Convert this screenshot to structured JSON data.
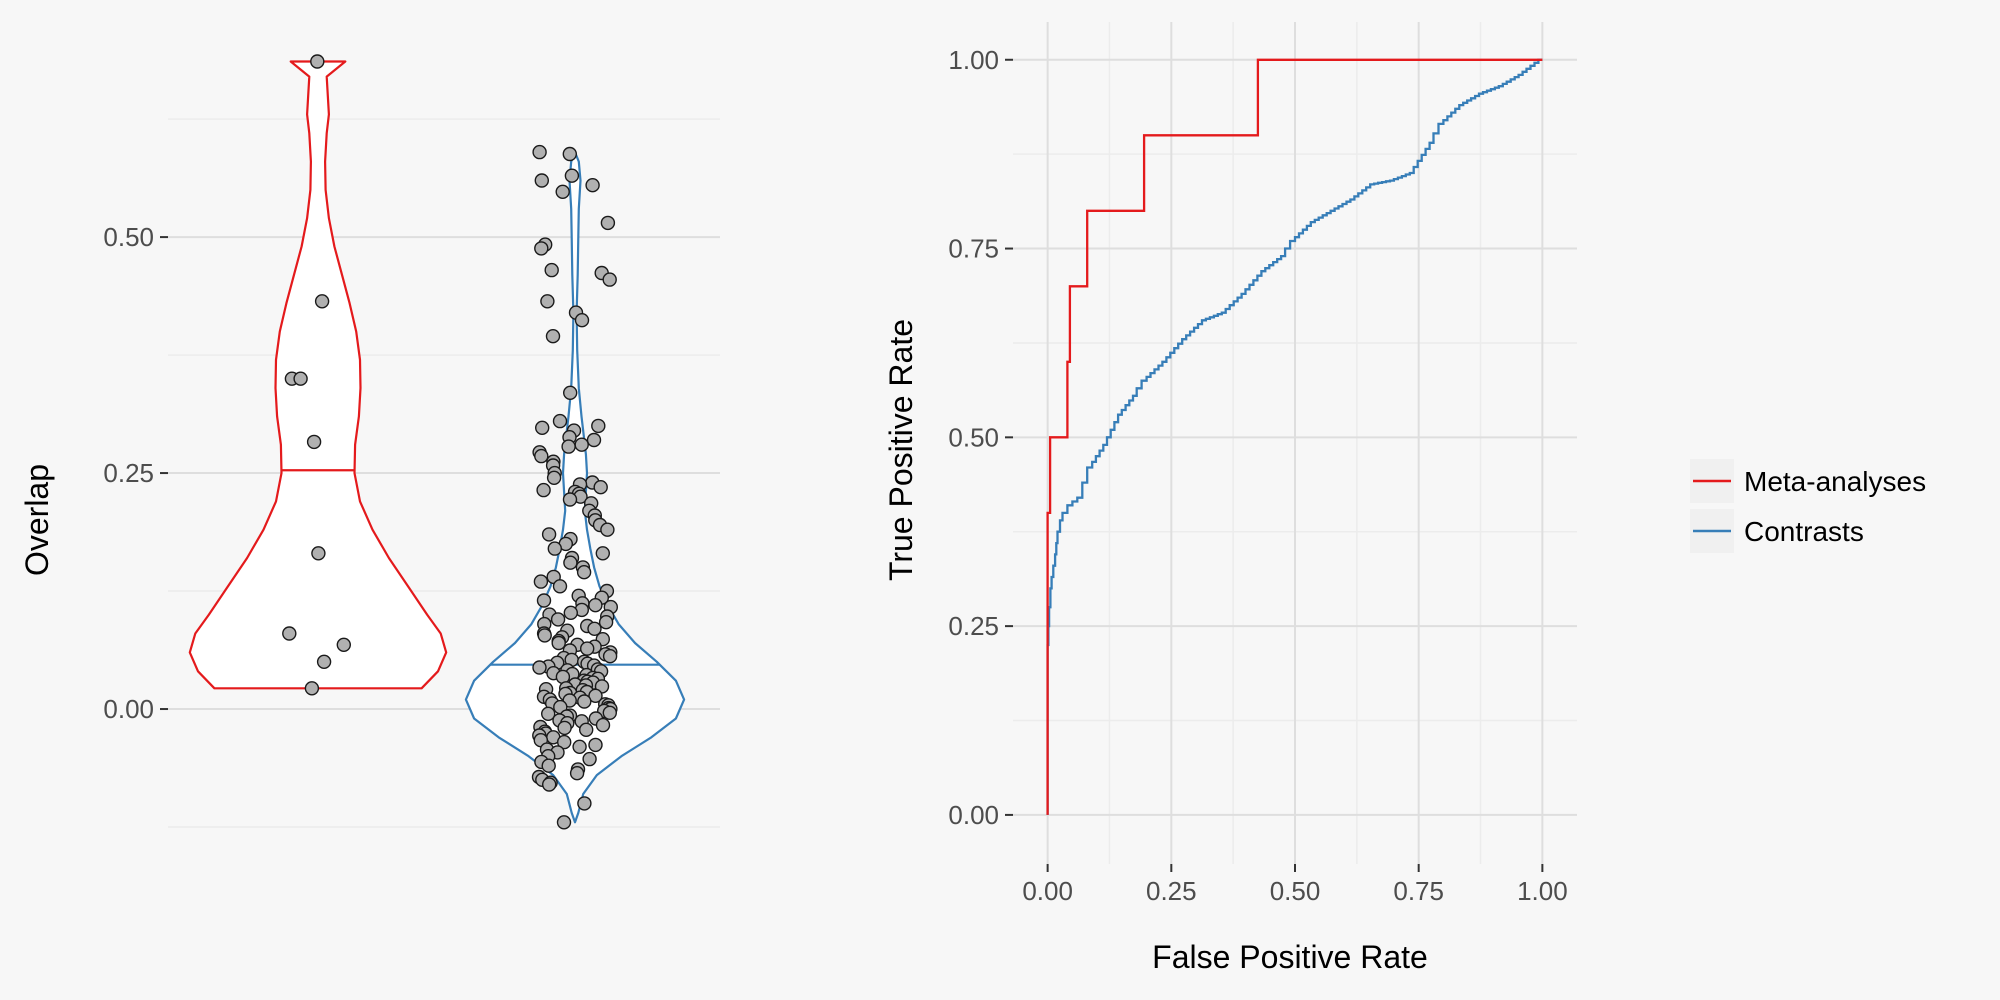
{
  "colors": {
    "background": "#f7f7f7",
    "grid_major": "#dedede",
    "grid_minor": "#ececec",
    "meta": "#e41a1c",
    "contrasts": "#377eb8",
    "point_fill": "#b0b0b0",
    "point_stroke": "#1a1a1a"
  },
  "chart_data": [
    {
      "type": "violin",
      "xlabel": "",
      "ylabel": "Overlap",
      "ylim": [
        -0.25,
        0.73
      ],
      "yticks": [
        0.0,
        0.25,
        0.5
      ],
      "ytick_labels": [
        "0.00",
        "0.25",
        "0.50"
      ],
      "grid": true,
      "groups": [
        {
          "name": "Meta-analyses",
          "color": "#e41a1c",
          "median": 0.253,
          "range": [
            0.022,
            0.686
          ],
          "density_profile": [
            [
              0.022,
              0.19
            ],
            [
              0.04,
              0.22
            ],
            [
              0.06,
              0.235
            ],
            [
              0.08,
              0.225
            ],
            [
              0.1,
              0.2
            ],
            [
              0.13,
              0.165
            ],
            [
              0.16,
              0.13
            ],
            [
              0.19,
              0.1
            ],
            [
              0.22,
              0.077
            ],
            [
              0.25,
              0.067
            ],
            [
              0.28,
              0.068
            ],
            [
              0.31,
              0.075
            ],
            [
              0.34,
              0.078
            ],
            [
              0.37,
              0.077
            ],
            [
              0.4,
              0.07
            ],
            [
              0.43,
              0.058
            ],
            [
              0.46,
              0.044
            ],
            [
              0.49,
              0.03
            ],
            [
              0.52,
              0.02
            ],
            [
              0.55,
              0.014
            ],
            [
              0.58,
              0.013
            ],
            [
              0.61,
              0.016
            ],
            [
              0.63,
              0.02
            ],
            [
              0.65,
              0.018
            ],
            [
              0.67,
              0.016
            ],
            [
              0.686,
              0.05
            ]
          ],
          "points": [
            0.686,
            0.432,
            0.35,
            0.35,
            0.283,
            0.165,
            0.08,
            0.068,
            0.05,
            0.022
          ]
        },
        {
          "name": "Contrasts",
          "color": "#377eb8",
          "median": 0.047,
          "range": [
            -0.12,
            0.59
          ],
          "density_profile": [
            [
              -0.12,
              0.0
            ],
            [
              -0.11,
              0.006
            ],
            [
              -0.09,
              0.015
            ],
            [
              -0.07,
              0.04
            ],
            [
              -0.05,
              0.085
            ],
            [
              -0.03,
              0.14
            ],
            [
              -0.01,
              0.185
            ],
            [
              0.01,
              0.2
            ],
            [
              0.03,
              0.185
            ],
            [
              0.05,
              0.15
            ],
            [
              0.07,
              0.11
            ],
            [
              0.09,
              0.08
            ],
            [
              0.11,
              0.06
            ],
            [
              0.13,
              0.045
            ],
            [
              0.15,
              0.035
            ],
            [
              0.17,
              0.028
            ],
            [
              0.19,
              0.022
            ],
            [
              0.21,
              0.018
            ],
            [
              0.23,
              0.02
            ],
            [
              0.25,
              0.022
            ],
            [
              0.27,
              0.02
            ],
            [
              0.29,
              0.016
            ],
            [
              0.31,
              0.012
            ],
            [
              0.34,
              0.007
            ],
            [
              0.38,
              0.004
            ],
            [
              0.42,
              0.003
            ],
            [
              0.46,
              0.005
            ],
            [
              0.5,
              0.006
            ],
            [
              0.53,
              0.007
            ],
            [
              0.56,
              0.01
            ],
            [
              0.58,
              0.007
            ],
            [
              0.59,
              0.0
            ]
          ],
          "points": [
            0.59,
            0.588,
            0.565,
            0.56,
            0.555,
            0.548,
            0.515,
            0.492,
            0.488,
            0.465,
            0.462,
            0.455,
            0.432,
            0.42,
            0.412,
            0.395,
            0.335,
            0.305,
            0.3,
            0.298,
            0.295,
            0.288,
            0.285,
            0.28,
            0.278,
            0.272,
            0.268,
            0.262,
            0.258,
            0.25,
            0.245,
            0.24,
            0.238,
            0.235,
            0.232,
            0.23,
            0.228,
            0.225,
            0.222,
            0.218,
            0.21,
            0.205,
            0.2,
            0.195,
            0.19,
            0.185,
            0.18,
            0.175,
            0.17,
            0.165,
            0.16,
            0.155,
            0.15,
            0.145,
            0.14,
            0.135,
            0.13,
            0.125,
            0.12,
            0.118,
            0.115,
            0.112,
            0.11,
            0.108,
            0.105,
            0.102,
            0.1,
            0.098,
            0.095,
            0.092,
            0.09,
            0.088,
            0.085,
            0.083,
            0.08,
            0.078,
            0.076,
            0.074,
            0.072,
            0.07,
            0.068,
            0.066,
            0.064,
            0.062,
            0.06,
            0.058,
            0.056,
            0.054,
            0.052,
            0.05,
            0.049,
            0.048,
            0.046,
            0.045,
            0.044,
            0.042,
            0.041,
            0.04,
            0.038,
            0.037,
            0.036,
            0.034,
            0.033,
            0.032,
            0.03,
            0.029,
            0.028,
            0.026,
            0.025,
            0.024,
            0.022,
            0.021,
            0.02,
            0.018,
            0.017,
            0.016,
            0.014,
            0.013,
            0.012,
            0.01,
            0.009,
            0.008,
            0.006,
            0.005,
            0.004,
            0.002,
            0.001,
            0.0,
            -0.002,
            -0.004,
            -0.005,
            -0.007,
            -0.008,
            -0.01,
            -0.012,
            -0.013,
            -0.015,
            -0.017,
            -0.019,
            -0.02,
            -0.022,
            -0.024,
            -0.026,
            -0.028,
            -0.03,
            -0.033,
            -0.035,
            -0.038,
            -0.04,
            -0.043,
            -0.046,
            -0.05,
            -0.053,
            -0.056,
            -0.06,
            -0.064,
            -0.068,
            -0.072,
            -0.075,
            -0.078,
            -0.08,
            -0.1,
            -0.12
          ]
        }
      ]
    },
    {
      "type": "line",
      "xlabel": "False Positive Rate",
      "ylabel": "True Positive Rate",
      "xlim": [
        -0.07,
        1.07
      ],
      "ylim": [
        -0.065,
        1.05
      ],
      "xticks": [
        0.0,
        0.25,
        0.5,
        0.75,
        1.0
      ],
      "xtick_labels": [
        "0.00",
        "0.25",
        "0.50",
        "0.75",
        "1.00"
      ],
      "yticks": [
        0.0,
        0.25,
        0.5,
        0.75,
        1.0
      ],
      "ytick_labels": [
        "0.00",
        "0.25",
        "0.50",
        "0.75",
        "1.00"
      ],
      "grid": true,
      "legend_position": "right",
      "series": [
        {
          "name": "Meta-analyses",
          "color": "#e41a1c",
          "step": true,
          "points": [
            [
              0.0,
              0.0
            ],
            [
              0.0,
              0.4
            ],
            [
              0.005,
              0.4
            ],
            [
              0.005,
              0.5
            ],
            [
              0.04,
              0.5
            ],
            [
              0.04,
              0.6
            ],
            [
              0.045,
              0.6
            ],
            [
              0.045,
              0.7
            ],
            [
              0.08,
              0.7
            ],
            [
              0.08,
              0.8
            ],
            [
              0.195,
              0.8
            ],
            [
              0.195,
              0.9
            ],
            [
              0.425,
              0.9
            ],
            [
              0.425,
              1.0
            ],
            [
              1.0,
              1.0
            ]
          ]
        },
        {
          "name": "Contrasts",
          "color": "#377eb8",
          "step": false,
          "points": [
            [
              0.0,
              0.0
            ],
            [
              0.0,
              0.2
            ],
            [
              0.003,
              0.25
            ],
            [
              0.008,
              0.3
            ],
            [
              0.015,
              0.33
            ],
            [
              0.02,
              0.36
            ],
            [
              0.03,
              0.39
            ],
            [
              0.05,
              0.41
            ],
            [
              0.07,
              0.42
            ],
            [
              0.09,
              0.46
            ],
            [
              0.12,
              0.49
            ],
            [
              0.15,
              0.53
            ],
            [
              0.18,
              0.555
            ],
            [
              0.2,
              0.575
            ],
            [
              0.24,
              0.6
            ],
            [
              0.28,
              0.63
            ],
            [
              0.32,
              0.655
            ],
            [
              0.36,
              0.665
            ],
            [
              0.4,
              0.69
            ],
            [
              0.44,
              0.72
            ],
            [
              0.48,
              0.74
            ],
            [
              0.5,
              0.76
            ],
            [
              0.54,
              0.785
            ],
            [
              0.58,
              0.8
            ],
            [
              0.62,
              0.815
            ],
            [
              0.66,
              0.835
            ],
            [
              0.7,
              0.84
            ],
            [
              0.74,
              0.85
            ],
            [
              0.78,
              0.89
            ],
            [
              0.8,
              0.915
            ],
            [
              0.84,
              0.94
            ],
            [
              0.88,
              0.955
            ],
            [
              0.92,
              0.965
            ],
            [
              0.96,
              0.98
            ],
            [
              1.0,
              1.0
            ]
          ]
        }
      ]
    }
  ],
  "legend": {
    "entries": [
      {
        "label": "Meta-analyses",
        "color": "#e41a1c"
      },
      {
        "label": "Contrasts",
        "color": "#377eb8"
      }
    ]
  }
}
